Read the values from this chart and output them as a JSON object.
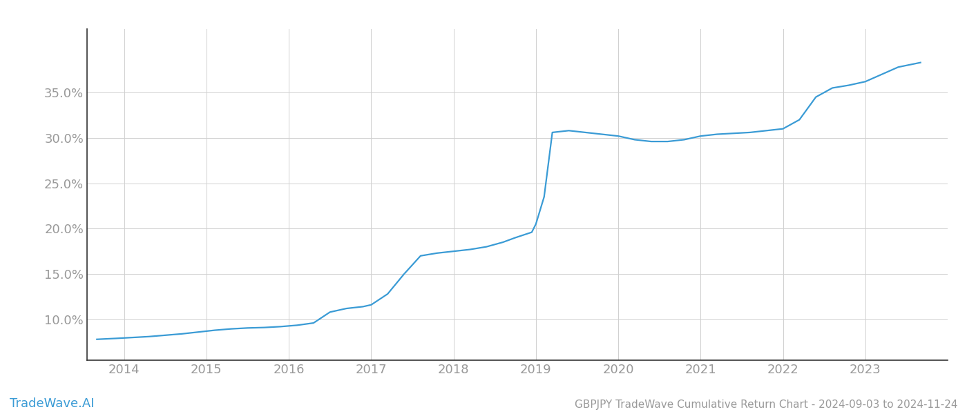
{
  "title": "GBPJPY TradeWave Cumulative Return Chart - 2024-09-03 to 2024-11-24",
  "watermark": "TradeWave.AI",
  "line_color": "#3a9bd5",
  "background_color": "#ffffff",
  "grid_color": "#d0d0d0",
  "x_years": [
    2014,
    2015,
    2016,
    2017,
    2018,
    2019,
    2020,
    2021,
    2022,
    2023
  ],
  "x_data": [
    2013.67,
    2013.9,
    2014.1,
    2014.3,
    2014.5,
    2014.7,
    2014.9,
    2015.1,
    2015.3,
    2015.5,
    2015.7,
    2015.9,
    2016.1,
    2016.3,
    2016.5,
    2016.7,
    2016.9,
    2017.0,
    2017.2,
    2017.4,
    2017.6,
    2017.8,
    2018.0,
    2018.2,
    2018.4,
    2018.6,
    2018.75,
    2018.85,
    2018.95,
    2019.0,
    2019.1,
    2019.2,
    2019.4,
    2019.6,
    2019.8,
    2020.0,
    2020.2,
    2020.4,
    2020.6,
    2020.8,
    2021.0,
    2021.2,
    2021.4,
    2021.6,
    2021.8,
    2022.0,
    2022.2,
    2022.4,
    2022.6,
    2022.8,
    2023.0,
    2023.2,
    2023.4,
    2023.67
  ],
  "y_data": [
    7.8,
    7.9,
    8.0,
    8.1,
    8.25,
    8.4,
    8.6,
    8.8,
    8.95,
    9.05,
    9.1,
    9.2,
    9.35,
    9.6,
    10.8,
    11.2,
    11.4,
    11.6,
    12.8,
    15.0,
    17.0,
    17.3,
    17.5,
    17.7,
    18.0,
    18.5,
    19.0,
    19.3,
    19.6,
    20.5,
    23.5,
    30.6,
    30.8,
    30.6,
    30.4,
    30.2,
    29.8,
    29.6,
    29.6,
    29.8,
    30.2,
    30.4,
    30.5,
    30.6,
    30.8,
    31.0,
    32.0,
    34.5,
    35.5,
    35.8,
    36.2,
    37.0,
    37.8,
    38.3
  ],
  "ylim": [
    5.5,
    42.0
  ],
  "xlim": [
    2013.55,
    2024.0
  ],
  "yticks": [
    10.0,
    15.0,
    20.0,
    25.0,
    30.0,
    35.0
  ],
  "ytick_labels": [
    "10.0%",
    "15.0%",
    "20.0%",
    "25.0%",
    "30.0%",
    "35.0%"
  ],
  "title_fontsize": 11,
  "tick_fontsize": 13,
  "watermark_fontsize": 13,
  "line_width": 1.6,
  "axis_label_color": "#999999",
  "title_color": "#999999",
  "watermark_color": "#3a9bd5",
  "spine_color": "#333333"
}
